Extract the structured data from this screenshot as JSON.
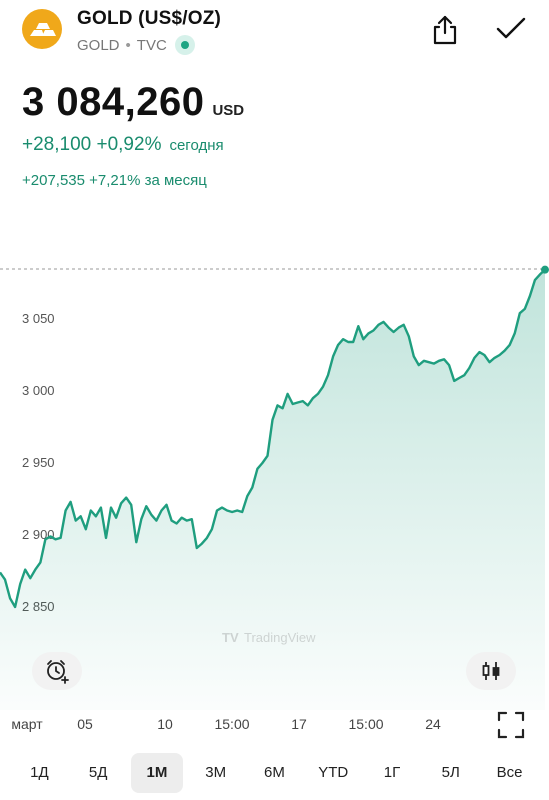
{
  "instrument": {
    "name": "GOLD (US$/OZ)",
    "symbol": "GOLD",
    "exchange": "TVC",
    "separator": "•"
  },
  "quote": {
    "price": "3 084,260",
    "currency": "USD",
    "change_today": "+28,100 +0,92%",
    "change_today_label": "сегодня",
    "change_month": "+207,535 +7,21% за месяц"
  },
  "colors": {
    "line": "#1f9e7f",
    "positive_text": "#1a8c6e",
    "logo": "#f0a81a"
  },
  "icons": {
    "logo": "gold-bars-icon",
    "share": "share-icon",
    "done": "check-icon",
    "alert": "alarm-plus-icon",
    "chart_type": "candlestick-icon",
    "fullscreen": "fullscreen-icon"
  },
  "watermark": "TradingView",
  "chart_data": {
    "type": "area",
    "title": "",
    "xlabel": "",
    "ylabel": "",
    "y_ticks": [
      "3 050",
      "3 000",
      "2 950",
      "2 900",
      "2 850"
    ],
    "y_tick_values": [
      3050,
      3000,
      2950,
      2900,
      2850
    ],
    "x_ticks": [
      "март",
      "05",
      "10",
      "15:00",
      "17",
      "15:00",
      "24"
    ],
    "ylim": [
      2830,
      3095
    ],
    "last_value": 3084.26,
    "grid": false,
    "series": [
      {
        "values": [
          2874,
          2869,
          2856,
          2850,
          2866,
          2876,
          2870,
          2876,
          2881,
          2897,
          2899,
          2897,
          2898,
          2917,
          2923,
          2910,
          2913,
          2904,
          2917,
          2913,
          2919,
          2898,
          2919,
          2912,
          2922,
          2926,
          2921,
          2895,
          2911,
          2920,
          2914,
          2910,
          2917,
          2921,
          2910,
          2908,
          2912,
          2910,
          2911,
          2891,
          2894,
          2898,
          2904,
          2917,
          2919,
          2917,
          2916,
          2917,
          2916,
          2927,
          2933,
          2946,
          2950,
          2955,
          2980,
          2990,
          2988,
          2998,
          2991,
          2992,
          2993,
          2990,
          2995,
          2998,
          3003,
          3011,
          3024,
          3032,
          3036,
          3034,
          3034,
          3045,
          3036,
          3040,
          3042,
          3046,
          3048,
          3044,
          3041,
          3044,
          3046,
          3038,
          3024,
          3018,
          3021,
          3020,
          3019,
          3021,
          3022,
          3018,
          3007,
          3009,
          3011,
          3016,
          3023,
          3027,
          3025,
          3020,
          3023,
          3025,
          3028,
          3032,
          3040,
          3054,
          3057,
          3066,
          3077,
          3081,
          3084.26
        ]
      }
    ]
  },
  "x_axis_labels": [
    "март",
    "05",
    "10",
    "15:00",
    "17",
    "15:00",
    "24"
  ],
  "ranges": [
    "1Д",
    "5Д",
    "1М",
    "3М",
    "6М",
    "YTD",
    "1Г",
    "5Л",
    "Все"
  ],
  "active_range": "1М"
}
